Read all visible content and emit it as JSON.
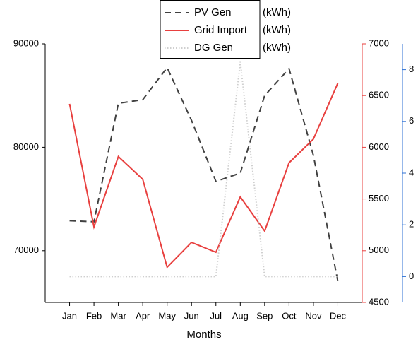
{
  "chart_data": {
    "type": "line",
    "x_label": "Months",
    "categories": [
      "Jan",
      "Feb",
      "Mar",
      "Apr",
      "May",
      "Jun",
      "Jul",
      "Aug",
      "Sep",
      "Oct",
      "Nov",
      "Dec"
    ],
    "series": [
      {
        "name": "PV Gen",
        "unit": "(kWh)",
        "color": "#404040",
        "style": "dashed",
        "axis": "y",
        "values": [
          72900,
          72800,
          84250,
          84600,
          87700,
          82600,
          76700,
          77500,
          85000,
          87600,
          79200,
          67050
        ]
      },
      {
        "name": "Grid Import",
        "unit": "(kWh)",
        "color": "#e8403f",
        "style": "solid",
        "axis": "y2",
        "values": [
          6420,
          5230,
          5910,
          5690,
          4840,
          5080,
          4985,
          5520,
          5190,
          5850,
          6080,
          6620
        ]
      },
      {
        "name": "DG Gen",
        "unit": "(kWh)",
        "color": "#cfcfcf",
        "style": "dotted",
        "axis": "y3",
        "values": [
          0,
          0,
          0,
          0,
          0,
          0,
          0,
          8.3,
          0,
          0,
          0,
          0
        ]
      }
    ],
    "ylim": [
      65000,
      90000
    ],
    "yticks": [
      70000,
      80000,
      90000
    ],
    "y2lim": [
      4500,
      7000
    ],
    "y2ticks": [
      4500,
      5000,
      5500,
      6000,
      6500,
      7000
    ],
    "y3lim": [
      -1,
      9
    ],
    "y3ticks": [
      0,
      2,
      4,
      6,
      8
    ],
    "axis_colors": {
      "y": "#000000",
      "y2": "#e8403f",
      "y3": "#2f72d4"
    },
    "legend": "top"
  }
}
